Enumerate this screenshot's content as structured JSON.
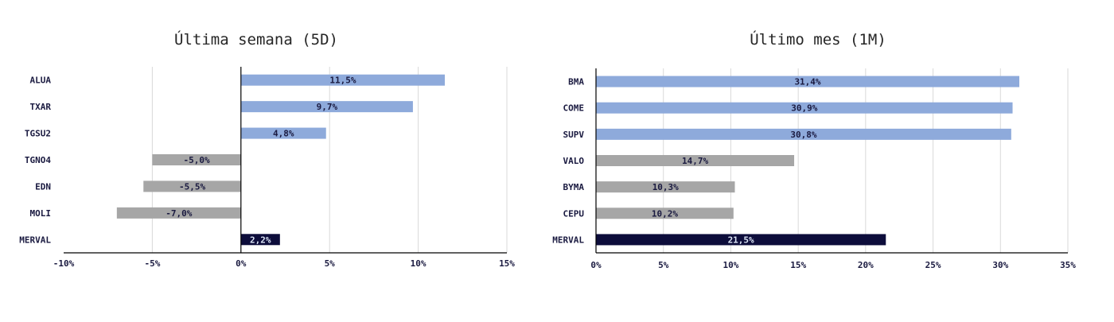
{
  "chart_data": [
    {
      "type": "bar",
      "orientation": "horizontal",
      "title": "Última semana (5D)",
      "categories": [
        "ALUA",
        "TXAR",
        "TGSU2",
        "TGNO4",
        "EDN",
        "MOLI",
        "MERVAL"
      ],
      "values": [
        11.5,
        9.7,
        4.8,
        -5.0,
        -5.5,
        -7.0,
        2.2
      ],
      "data_labels": [
        "11,5%",
        "9,7%",
        "4,8%",
        "-5,0%",
        "-5,5%",
        "-7,0%",
        "2,2%"
      ],
      "bar_colors": [
        "#8eaadb",
        "#8eaadb",
        "#8eaadb",
        "#a6a6a6",
        "#a6a6a6",
        "#a6a6a6",
        "#0d0d3b"
      ],
      "xlim": [
        -10,
        15
      ],
      "ticks": [
        -10,
        -5,
        0,
        5,
        10,
        15
      ],
      "tick_labels": [
        "-10%",
        "-5%",
        "0%",
        "5%",
        "10%",
        "15%"
      ],
      "grid": true,
      "legend": "none"
    },
    {
      "type": "bar",
      "orientation": "horizontal",
      "title": "Último mes (1M)",
      "categories": [
        "BMA",
        "COME",
        "SUPV",
        "VALO",
        "BYMA",
        "CEPU",
        "MERVAL"
      ],
      "values": [
        31.4,
        30.9,
        30.8,
        14.7,
        10.3,
        10.2,
        21.5
      ],
      "data_labels": [
        "31,4%",
        "30,9%",
        "30,8%",
        "14,7%",
        "10,3%",
        "10,2%",
        "21,5%"
      ],
      "bar_colors": [
        "#8eaadb",
        "#8eaadb",
        "#8eaadb",
        "#a6a6a6",
        "#a6a6a6",
        "#a6a6a6",
        "#0d0d3b"
      ],
      "xlim": [
        0,
        35
      ],
      "ticks": [
        0,
        5,
        10,
        15,
        20,
        25,
        30,
        35
      ],
      "tick_labels": [
        "0%",
        "5%",
        "10%",
        "15%",
        "20%",
        "25%",
        "30%",
        "35%"
      ],
      "grid": true,
      "legend": "none"
    }
  ]
}
